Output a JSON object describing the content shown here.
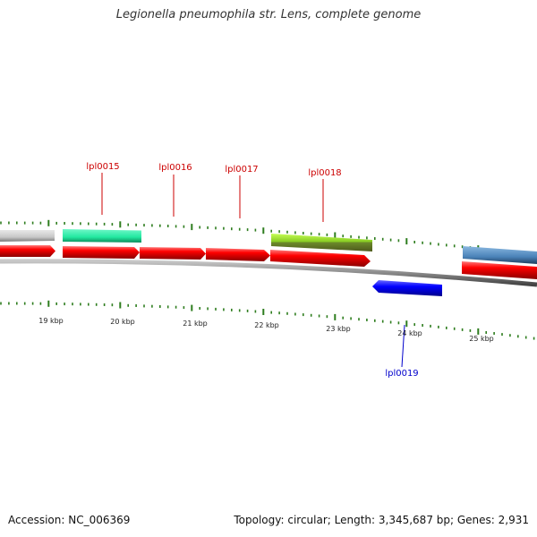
{
  "header": {
    "title": "Legionella pneumophila str. Lens, complete genome"
  },
  "footer": {
    "accession": "Accession: NC_006369",
    "summary": "Topology: circular; Length: 3,345,687 bp; Genes: 2,931"
  },
  "colors": {
    "forward_cds": "#ff0000",
    "reverse_cds": "#0000ff",
    "forward_label": "#cc0000",
    "reverse_label": "#0000cc",
    "tick": "#2e7d1e",
    "backbone": "#8a8a8a",
    "scale_label": "#222222"
  },
  "scale": {
    "unit": "kbp",
    "labels": [
      "19 kbp",
      "20 kbp",
      "21 kbp",
      "22 kbp",
      "23 kbp",
      "24 kbp",
      "25 kbp"
    ]
  },
  "genes": [
    {
      "locus_tag": "lpl0015",
      "strand": "forward",
      "label_color": "#cc0000"
    },
    {
      "locus_tag": "lpl0016",
      "strand": "forward",
      "label_color": "#cc0000"
    },
    {
      "locus_tag": "lpl0017",
      "strand": "forward",
      "label_color": "#cc0000"
    },
    {
      "locus_tag": "lpl0018",
      "strand": "forward",
      "label_color": "#cc0000"
    },
    {
      "locus_tag": "lpl0019",
      "strand": "reverse",
      "label_color": "#0000cc"
    }
  ],
  "annotation_tracks": [
    {
      "name": "outer-track-block-1",
      "color": "#c8c8c8"
    },
    {
      "name": "outer-track-block-2",
      "color": "#22e8a0"
    },
    {
      "name": "outer-track-block-3",
      "color": "#88cc22"
    },
    {
      "name": "outer-track-block-4",
      "color": "#4a82b8"
    }
  ]
}
